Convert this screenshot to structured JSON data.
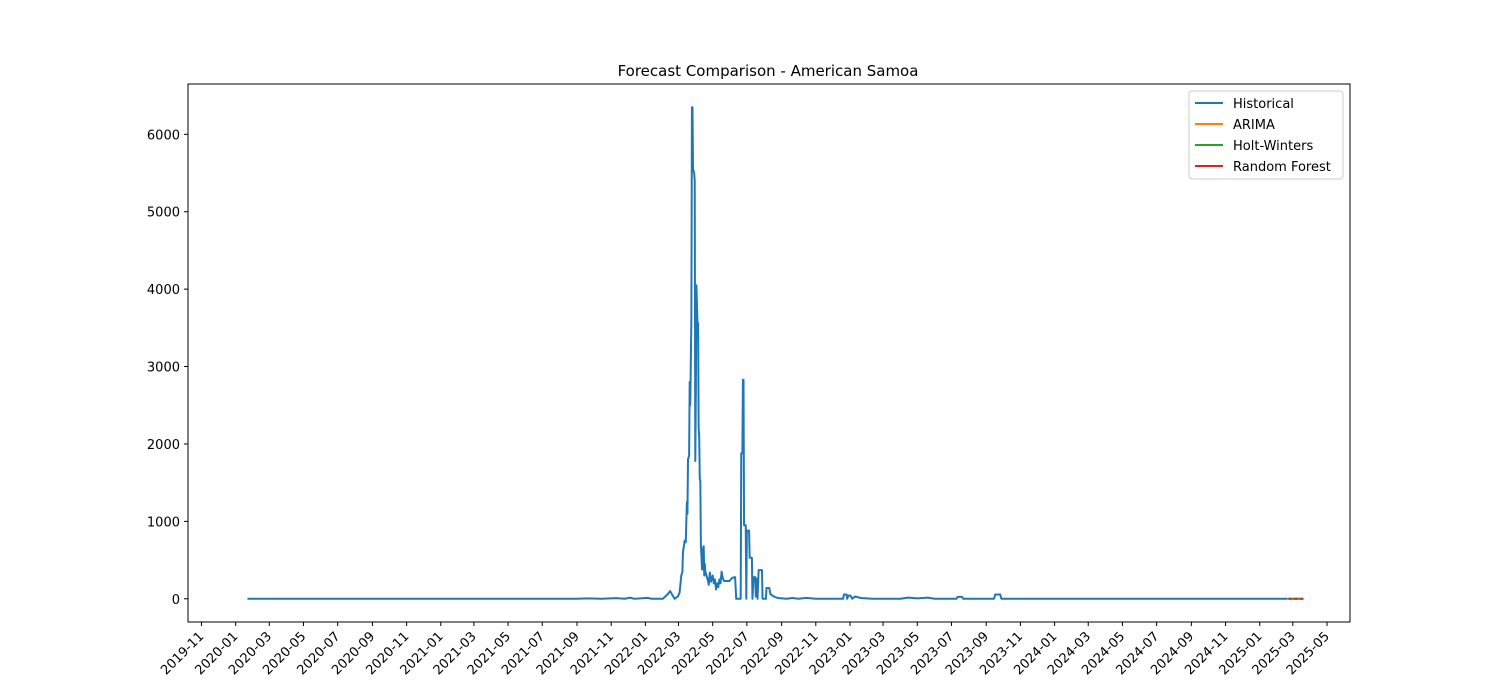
{
  "chart_data": {
    "type": "line",
    "title": "Forecast Comparison - American Samoa",
    "xlabel": "",
    "ylabel": "",
    "x_axis": {
      "type": "date",
      "range": [
        "2019-10-08",
        "2025-06-11"
      ],
      "tick_labels": [
        "2019-11",
        "2020-01",
        "2020-03",
        "2020-05",
        "2020-07",
        "2020-09",
        "2020-11",
        "2021-01",
        "2021-03",
        "2021-05",
        "2021-07",
        "2021-09",
        "2021-11",
        "2022-01",
        "2022-03",
        "2022-05",
        "2022-07",
        "2022-09",
        "2022-11",
        "2023-01",
        "2023-03",
        "2023-05",
        "2023-07",
        "2023-09",
        "2023-11",
        "2024-01",
        "2024-03",
        "2024-05",
        "2024-07",
        "2024-09",
        "2024-11",
        "2025-01",
        "2025-03",
        "2025-05"
      ]
    },
    "y_axis": {
      "range": [
        -300,
        6650
      ],
      "ticks": [
        0,
        1000,
        2000,
        3000,
        4000,
        5000,
        6000
      ],
      "tick_labels": [
        "0",
        "1000",
        "2000",
        "3000",
        "4000",
        "5000",
        "6000"
      ]
    },
    "grid": false,
    "legend": {
      "placement": "top-right"
    },
    "series": [
      {
        "name": "Historical",
        "color": "#1f77b4",
        "points": [
          [
            "2020-01-22",
            0
          ],
          [
            "2021-09-01",
            0
          ],
          [
            "2021-09-20",
            5
          ],
          [
            "2021-10-15",
            0
          ],
          [
            "2021-11-10",
            8
          ],
          [
            "2021-11-25",
            0
          ],
          [
            "2021-12-05",
            15
          ],
          [
            "2021-12-12",
            0
          ],
          [
            "2022-01-05",
            12
          ],
          [
            "2022-01-12",
            0
          ],
          [
            "2022-02-01",
            0
          ],
          [
            "2022-02-10",
            60
          ],
          [
            "2022-02-14",
            100
          ],
          [
            "2022-02-18",
            50
          ],
          [
            "2022-02-22",
            0
          ],
          [
            "2022-02-28",
            30
          ],
          [
            "2022-03-03",
            80
          ],
          [
            "2022-03-06",
            300
          ],
          [
            "2022-03-08",
            350
          ],
          [
            "2022-03-09",
            600
          ],
          [
            "2022-03-11",
            700
          ],
          [
            "2022-03-12",
            750
          ],
          [
            "2022-03-14",
            730
          ],
          [
            "2022-03-16",
            1250
          ],
          [
            "2022-03-17",
            1100
          ],
          [
            "2022-03-18",
            1800
          ],
          [
            "2022-03-20",
            1850
          ],
          [
            "2022-03-21",
            2800
          ],
          [
            "2022-03-22",
            2500
          ],
          [
            "2022-03-24",
            3600
          ],
          [
            "2022-03-25",
            6350
          ],
          [
            "2022-03-26",
            6350
          ],
          [
            "2022-03-27",
            5550
          ],
          [
            "2022-03-29",
            5500
          ],
          [
            "2022-03-30",
            5400
          ],
          [
            "2022-03-31",
            1780
          ],
          [
            "2022-04-01",
            2700
          ],
          [
            "2022-04-02",
            4050
          ],
          [
            "2022-04-03",
            3800
          ],
          [
            "2022-04-04",
            3550
          ],
          [
            "2022-04-05",
            3560
          ],
          [
            "2022-04-06",
            2200
          ],
          [
            "2022-04-07",
            2100
          ],
          [
            "2022-04-08",
            1550
          ],
          [
            "2022-04-09",
            1520
          ],
          [
            "2022-04-10",
            700
          ],
          [
            "2022-04-11",
            550
          ],
          [
            "2022-04-12",
            380
          ],
          [
            "2022-04-13",
            650
          ],
          [
            "2022-04-14",
            380
          ],
          [
            "2022-04-15",
            680
          ],
          [
            "2022-04-16",
            300
          ],
          [
            "2022-04-17",
            450
          ],
          [
            "2022-04-18",
            350
          ],
          [
            "2022-04-20",
            300
          ],
          [
            "2022-04-22",
            250
          ],
          [
            "2022-04-24",
            180
          ],
          [
            "2022-04-26",
            340
          ],
          [
            "2022-04-28",
            220
          ],
          [
            "2022-05-01",
            300
          ],
          [
            "2022-05-03",
            200
          ],
          [
            "2022-05-05",
            250
          ],
          [
            "2022-05-07",
            120
          ],
          [
            "2022-05-09",
            200
          ],
          [
            "2022-05-11",
            150
          ],
          [
            "2022-05-13",
            250
          ],
          [
            "2022-05-15",
            200
          ],
          [
            "2022-05-17",
            350
          ],
          [
            "2022-05-19",
            270
          ],
          [
            "2022-05-21",
            230
          ],
          [
            "2022-05-31",
            230
          ],
          [
            "2022-06-05",
            270
          ],
          [
            "2022-06-10",
            280
          ],
          [
            "2022-06-12",
            0
          ],
          [
            "2022-06-20",
            0
          ],
          [
            "2022-06-21",
            1880
          ],
          [
            "2022-06-23",
            1880
          ],
          [
            "2022-06-24",
            2830
          ],
          [
            "2022-06-25",
            2830
          ],
          [
            "2022-06-26",
            950
          ],
          [
            "2022-06-29",
            950
          ],
          [
            "2022-06-30",
            0
          ],
          [
            "2022-07-01",
            880
          ],
          [
            "2022-07-05",
            880
          ],
          [
            "2022-07-06",
            530
          ],
          [
            "2022-07-10",
            530
          ],
          [
            "2022-07-11",
            0
          ],
          [
            "2022-07-13",
            280
          ],
          [
            "2022-07-16",
            280
          ],
          [
            "2022-07-17",
            30
          ],
          [
            "2022-07-19",
            260
          ],
          [
            "2022-07-20",
            0
          ],
          [
            "2022-07-22",
            370
          ],
          [
            "2022-07-28",
            370
          ],
          [
            "2022-07-29",
            0
          ],
          [
            "2022-08-04",
            0
          ],
          [
            "2022-08-05",
            140
          ],
          [
            "2022-08-10",
            140
          ],
          [
            "2022-08-12",
            60
          ],
          [
            "2022-08-18",
            30
          ],
          [
            "2022-08-25",
            10
          ],
          [
            "2022-09-10",
            0
          ],
          [
            "2022-09-20",
            10
          ],
          [
            "2022-10-01",
            0
          ],
          [
            "2022-10-15",
            12
          ],
          [
            "2022-11-01",
            0
          ],
          [
            "2022-12-20",
            0
          ],
          [
            "2022-12-21",
            55
          ],
          [
            "2022-12-26",
            55
          ],
          [
            "2022-12-27",
            0
          ],
          [
            "2022-12-29",
            40
          ],
          [
            "2023-01-02",
            40
          ],
          [
            "2023-01-05",
            0
          ],
          [
            "2023-01-10",
            30
          ],
          [
            "2023-01-20",
            10
          ],
          [
            "2023-02-10",
            0
          ],
          [
            "2023-04-01",
            0
          ],
          [
            "2023-04-15",
            15
          ],
          [
            "2023-05-01",
            5
          ],
          [
            "2023-05-20",
            15
          ],
          [
            "2023-06-01",
            0
          ],
          [
            "2023-07-10",
            0
          ],
          [
            "2023-07-12",
            25
          ],
          [
            "2023-07-20",
            25
          ],
          [
            "2023-07-22",
            0
          ],
          [
            "2023-09-15",
            0
          ],
          [
            "2023-09-17",
            55
          ],
          [
            "2023-09-26",
            55
          ],
          [
            "2023-09-28",
            0
          ],
          [
            "2025-02-20",
            0
          ]
        ]
      },
      {
        "name": "ARIMA",
        "color": "#ff7f0e",
        "points": [
          [
            "2025-02-21",
            0
          ],
          [
            "2025-03-20",
            0
          ]
        ]
      },
      {
        "name": "Holt-Winters",
        "color": "#2ca02c",
        "points": [
          [
            "2025-02-21",
            0
          ],
          [
            "2025-03-20",
            0
          ]
        ]
      },
      {
        "name": "Random Forest",
        "color": "#d62728",
        "style": "dotted",
        "points": [
          [
            "2025-02-21",
            0
          ],
          [
            "2025-03-20",
            0
          ]
        ]
      }
    ]
  }
}
